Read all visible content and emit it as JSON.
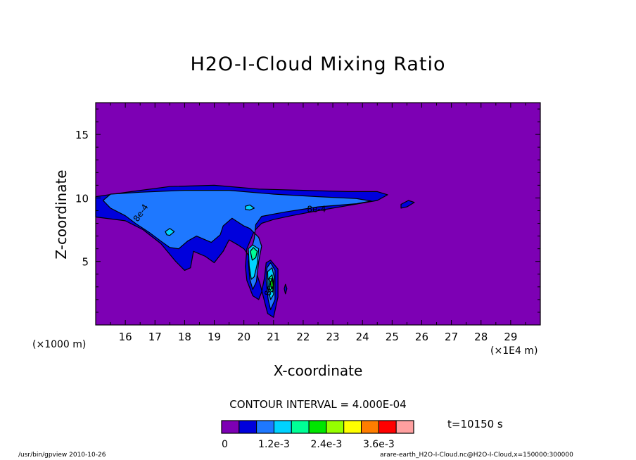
{
  "title": "H2O-I-Cloud Mixing Ratio",
  "xlabel": "X-coordinate",
  "ylabel": "Z-coordinate",
  "x_unit_left": "(×1000 m)",
  "x_unit_right": "(×1E4 m)",
  "contour_interval": "CONTOUR INTERVAL = 4.000E-04",
  "time_label": "t=10150 s",
  "footer_left": "/usr/bin/gpview   2010-10-26",
  "footer_right": "arare-earth_H2O-I-Cloud.nc@H2O-I-Cloud,x=150000:300000",
  "colors": {
    "background_field": "#7d00b4",
    "frame": "#000000"
  },
  "chart_data": {
    "type": "heatmap",
    "title": "H2O-I-Cloud Mixing Ratio",
    "xlabel": "X-coordinate",
    "ylabel": "Z-coordinate",
    "x_unit": "(×1E4 m)",
    "y_unit": "(×1000 m)",
    "xlim": [
      15.0,
      30.0
    ],
    "ylim": [
      0.0,
      17.5
    ],
    "x_ticks": [
      16,
      17,
      18,
      19,
      20,
      21,
      22,
      23,
      24,
      25,
      26,
      27,
      28,
      29
    ],
    "y_ticks": [
      5,
      10,
      15
    ],
    "contour_interval": 0.0004,
    "colorbar": {
      "levels": [
        0,
        0.0004,
        0.0008,
        0.0012,
        0.0016,
        0.002,
        0.0024,
        0.0028,
        0.0032,
        0.0036,
        0.004,
        0.0044
      ],
      "colors": [
        "#7d00b4",
        "#0000dc",
        "#1e78ff",
        "#00d2ff",
        "#00ff96",
        "#00e600",
        "#96ff00",
        "#ffff00",
        "#ff7d00",
        "#ff0000",
        "#ffa0a0"
      ],
      "tick_labels": [
        "0",
        "1.2e-3",
        "2.4e-3",
        "3.6e-3"
      ],
      "tick_values": [
        0,
        0.0012,
        0.0024,
        0.0036
      ]
    },
    "contour_labels": [
      "8e-4",
      "8e-4",
      "8e-4"
    ],
    "regions": [
      {
        "level": 0.0004,
        "points": [
          [
            15.0,
            10.1
          ],
          [
            16.2,
            10.5
          ],
          [
            17.5,
            10.9
          ],
          [
            19.0,
            11.0
          ],
          [
            20.5,
            10.7
          ],
          [
            22.0,
            10.6
          ],
          [
            23.5,
            10.5
          ],
          [
            24.5,
            10.5
          ],
          [
            24.85,
            10.25
          ],
          [
            24.5,
            9.8
          ],
          [
            23.5,
            9.4
          ],
          [
            22.5,
            9.0
          ],
          [
            21.6,
            8.6
          ],
          [
            21.0,
            8.3
          ],
          [
            20.6,
            8.0
          ],
          [
            20.35,
            7.4
          ],
          [
            20.1,
            6.0
          ],
          [
            20.05,
            4.6
          ],
          [
            20.1,
            3.5
          ],
          [
            20.3,
            2.3
          ],
          [
            20.5,
            2.0
          ],
          [
            20.6,
            2.6
          ],
          [
            20.7,
            3.8
          ],
          [
            20.75,
            4.9
          ],
          [
            20.9,
            5.1
          ],
          [
            21.15,
            4.4
          ],
          [
            21.15,
            2.2
          ],
          [
            21.0,
            0.6
          ],
          [
            20.8,
            0.9
          ],
          [
            20.7,
            1.8
          ],
          [
            20.55,
            3.2
          ],
          [
            20.3,
            5.0
          ],
          [
            20.0,
            6.0
          ],
          [
            19.8,
            6.3
          ],
          [
            19.5,
            6.7
          ],
          [
            19.3,
            5.8
          ],
          [
            19.0,
            4.9
          ],
          [
            18.7,
            5.4
          ],
          [
            18.3,
            5.8
          ],
          [
            18.2,
            4.5
          ],
          [
            18.0,
            4.3
          ],
          [
            17.7,
            5.0
          ],
          [
            17.2,
            6.4
          ],
          [
            16.6,
            7.5
          ],
          [
            16.0,
            8.2
          ],
          [
            15.0,
            8.5
          ]
        ]
      },
      {
        "level": 0.0004,
        "points": [
          [
            25.3,
            9.5
          ],
          [
            25.55,
            9.8
          ],
          [
            25.75,
            9.65
          ],
          [
            25.5,
            9.3
          ],
          [
            25.3,
            9.2
          ]
        ]
      },
      {
        "level": 0.0004,
        "points": [
          [
            21.4,
            3.2
          ],
          [
            21.45,
            2.85
          ],
          [
            21.4,
            2.45
          ],
          [
            21.36,
            2.85
          ]
        ]
      },
      {
        "level": 0.0008,
        "points": [
          [
            15.25,
            9.8
          ],
          [
            15.5,
            10.3
          ],
          [
            16.5,
            10.45
          ],
          [
            18.0,
            10.6
          ],
          [
            19.5,
            10.6
          ],
          [
            21.0,
            10.3
          ],
          [
            22.5,
            10.1
          ],
          [
            23.8,
            9.95
          ],
          [
            24.3,
            9.75
          ],
          [
            23.8,
            9.55
          ],
          [
            22.5,
            9.3
          ],
          [
            21.4,
            8.9
          ],
          [
            20.6,
            8.55
          ],
          [
            20.4,
            7.9
          ],
          [
            20.35,
            6.8
          ],
          [
            20.15,
            5.0
          ],
          [
            20.2,
            3.6
          ],
          [
            20.3,
            2.8
          ],
          [
            20.42,
            3.4
          ],
          [
            20.5,
            5.0
          ],
          [
            20.6,
            6.2
          ],
          [
            20.5,
            6.9
          ],
          [
            20.2,
            7.6
          ],
          [
            20.0,
            7.8
          ],
          [
            19.6,
            8.4
          ],
          [
            19.3,
            7.8
          ],
          [
            19.2,
            7.1
          ],
          [
            18.9,
            6.5
          ],
          [
            18.6,
            6.8
          ],
          [
            18.4,
            7.0
          ],
          [
            18.1,
            6.6
          ],
          [
            17.8,
            6.0
          ],
          [
            17.5,
            6.1
          ],
          [
            17.2,
            6.6
          ],
          [
            16.8,
            7.3
          ],
          [
            16.4,
            7.9
          ],
          [
            16.0,
            8.6
          ],
          [
            15.5,
            9.2
          ]
        ]
      },
      {
        "level": 0.0008,
        "points": [
          [
            20.78,
            4.5
          ],
          [
            20.9,
            4.9
          ],
          [
            21.05,
            4.3
          ],
          [
            21.05,
            2.0
          ],
          [
            20.9,
            1.2
          ],
          [
            20.82,
            2.0
          ],
          [
            20.75,
            3.5
          ]
        ]
      },
      {
        "level": 0.0012,
        "points": [
          [
            17.35,
            7.35
          ],
          [
            17.5,
            7.6
          ],
          [
            17.65,
            7.35
          ],
          [
            17.5,
            7.05
          ],
          [
            17.4,
            7.1
          ]
        ]
      },
      {
        "level": 0.0012,
        "points": [
          [
            20.05,
            9.35
          ],
          [
            20.2,
            9.45
          ],
          [
            20.35,
            9.2
          ],
          [
            20.2,
            9.05
          ],
          [
            20.05,
            9.1
          ]
        ]
      },
      {
        "level": 0.0012,
        "points": [
          [
            20.15,
            6.0
          ],
          [
            20.3,
            6.3
          ],
          [
            20.5,
            6.0
          ],
          [
            20.45,
            4.8
          ],
          [
            20.35,
            3.8
          ],
          [
            20.25,
            3.6
          ],
          [
            20.18,
            4.6
          ]
        ]
      },
      {
        "level": 0.0012,
        "points": [
          [
            20.8,
            4.2
          ],
          [
            20.95,
            4.5
          ],
          [
            21.02,
            3.8
          ],
          [
            21.0,
            2.4
          ],
          [
            20.9,
            2.0
          ],
          [
            20.82,
            2.8
          ]
        ]
      },
      {
        "level": 0.0016,
        "points": [
          [
            20.22,
            5.8
          ],
          [
            20.32,
            6.1
          ],
          [
            20.45,
            5.8
          ],
          [
            20.4,
            5.3
          ],
          [
            20.28,
            5.1
          ]
        ]
      },
      {
        "level": 0.0016,
        "points": [
          [
            20.85,
            3.7
          ],
          [
            20.95,
            3.95
          ],
          [
            21.0,
            3.3
          ],
          [
            20.97,
            2.6
          ],
          [
            20.88,
            2.7
          ]
        ]
      },
      {
        "level": 0.002,
        "points": [
          [
            20.9,
            3.4
          ],
          [
            20.96,
            3.6
          ],
          [
            20.99,
            3.1
          ],
          [
            20.95,
            2.85
          ],
          [
            20.91,
            3.0
          ]
        ]
      }
    ]
  }
}
